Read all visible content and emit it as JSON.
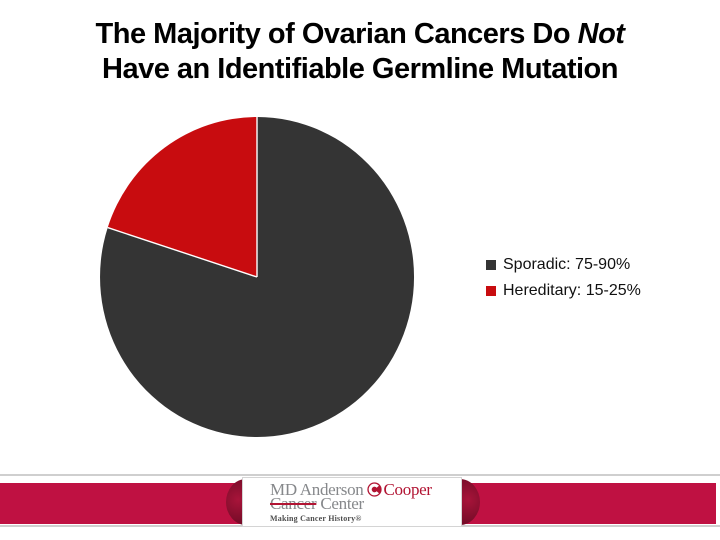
{
  "slide": {
    "title": {
      "line1_prefix": "The Majority of Ovarian Cancers Do ",
      "line1_italic": "Not",
      "line2": "Have an Identifiable Germline Mutation"
    }
  },
  "chart_data": {
    "type": "pie",
    "title": "The Majority of Ovarian Cancers Do Not Have an Identifiable Germline Mutation",
    "unit": "%",
    "slices": [
      {
        "label": "Sporadic: 75-90%",
        "value": 80,
        "color": "#343434"
      },
      {
        "label": "Hereditary: 15-25%",
        "value": 20,
        "color": "#c80c0f"
      }
    ],
    "start_angle_deg": 0,
    "direction": "clockwise",
    "legend_position": "right",
    "border_color": "#ffffff"
  },
  "footer": {
    "band_color": "#bf1142",
    "fold_color": "#7c0d2a",
    "hairline_color": "#cfcfcf",
    "logo": {
      "line1_gray": "MD Anderson",
      "line1_red": "Cooper",
      "line2_struck": "Cancer",
      "line2_gray": "Center",
      "tagline": "Making Cancer History®",
      "gray": "#86888b",
      "red": "#b21433"
    }
  }
}
